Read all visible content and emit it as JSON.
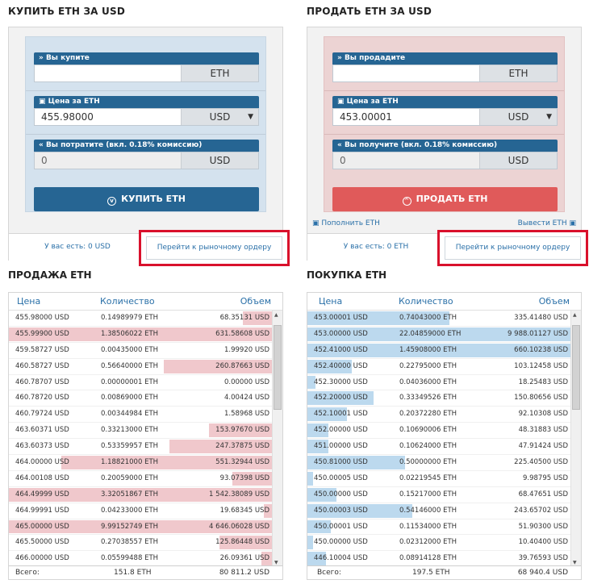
{
  "buy": {
    "title": "КУПИТЬ ETH ЗА USD",
    "amount_label": "» Вы купите",
    "amount_value": "",
    "amount_currency": "ETH",
    "price_label": "Цена за ETH",
    "price_value": "455.98000",
    "price_currency": "USD",
    "total_label": "« Вы потратите (вкл. 0.18% комиссию)",
    "total_value": "0",
    "total_currency": "USD",
    "button": "КУПИТЬ ETH",
    "balance": "У вас есть: 0 USD",
    "market_link": "Перейти к рыночному ордеру"
  },
  "sell": {
    "title": "ПРОДАТЬ ETH ЗА USD",
    "amount_label": "» Вы продадите",
    "amount_value": "",
    "amount_currency": "ETH",
    "price_label": "Цена за ETH",
    "price_value": "453.00001",
    "price_currency": "USD",
    "total_label": "« Вы получите (вкл. 0.18% комиссию)",
    "total_value": "0",
    "total_currency": "USD",
    "button": "ПРОДАТЬ ETH",
    "deposit": "Пополнить ETH",
    "withdraw": "Вывести ETH",
    "balance": "У вас есть: 0 ETH",
    "market_link": "Перейти к рыночному ордеру"
  },
  "colors": {
    "sell_bar": "#f0c8cc",
    "buy_bar": "#bcd9ee"
  },
  "asks": {
    "title": "ПРОДАЖА ETH",
    "headers": [
      "Цена",
      "Количество",
      "Объем"
    ],
    "rows": [
      {
        "price": "455.98000 USD",
        "qty": "0.14989979 ETH",
        "vol": "68.35131 USD",
        "rowfill": 0.0,
        "volfill": 0.11
      },
      {
        "price": "455.99900 USD",
        "qty": "1.38506022 ETH",
        "vol": "631.58608 USD",
        "rowfill": 1.0,
        "volfill": 0
      },
      {
        "price": "459.58727 USD",
        "qty": "0.00435000 ETH",
        "vol": "1.99920 USD",
        "rowfill": 0,
        "volfill": 0
      },
      {
        "price": "460.58727 USD",
        "qty": "0.56640000 ETH",
        "vol": "260.87663 USD",
        "rowfill": 0,
        "volfill": 0.41
      },
      {
        "price": "460.78707 USD",
        "qty": "0.00000001 ETH",
        "vol": "0.00000 USD",
        "rowfill": 0,
        "volfill": 0
      },
      {
        "price": "460.78720 USD",
        "qty": "0.00869000 ETH",
        "vol": "4.00424 USD",
        "rowfill": 0,
        "volfill": 0
      },
      {
        "price": "460.79724 USD",
        "qty": "0.00344984 ETH",
        "vol": "1.58968 USD",
        "rowfill": 0,
        "volfill": 0
      },
      {
        "price": "463.60371 USD",
        "qty": "0.33213000 ETH",
        "vol": "153.97670 USD",
        "rowfill": 0,
        "volfill": 0.24
      },
      {
        "price": "463.60373 USD",
        "qty": "0.53359957 ETH",
        "vol": "247.37875 USD",
        "rowfill": 0,
        "volfill": 0.39
      },
      {
        "price": "464.00000 USD",
        "qty": "1.18821000 ETH",
        "vol": "551.32944 USD",
        "rowfill": 0.8,
        "volfill": 0
      },
      {
        "price": "464.00108 USD",
        "qty": "0.20059000 ETH",
        "vol": "93.07398 USD",
        "rowfill": 0,
        "volfill": 0.15
      },
      {
        "price": "464.49999 USD",
        "qty": "3.32051867 ETH",
        "vol": "1 542.38089 USD",
        "rowfill": 1.0,
        "volfill": 0
      },
      {
        "price": "464.99991 USD",
        "qty": "0.04233000 ETH",
        "vol": "19.68345 USD",
        "rowfill": 0,
        "volfill": 0.03
      },
      {
        "price": "465.00000 USD",
        "qty": "9.99152749 ETH",
        "vol": "4 646.06028 USD",
        "rowfill": 1.0,
        "volfill": 0
      },
      {
        "price": "465.50000 USD",
        "qty": "0.27038557 ETH",
        "vol": "125.86448 USD",
        "rowfill": 0,
        "volfill": 0.2
      },
      {
        "price": "466.00000 USD",
        "qty": "0.05599488 ETH",
        "vol": "26.09361 USD",
        "rowfill": 0,
        "volfill": 0.04
      }
    ],
    "footer_label": "Всего:",
    "footer_qty": "151.8 ETH",
    "footer_vol": "80 811.2 USD"
  },
  "bids": {
    "title": "ПОКУПКА ETH",
    "headers": [
      "Цена",
      "Количество",
      "Объем"
    ],
    "rows": [
      {
        "price": "453.00001 USD",
        "qty": "0.74043000 ETH",
        "vol": "335.41480 USD",
        "fill": 0.54
      },
      {
        "price": "453.00000 USD",
        "qty": "22.04859000 ETH",
        "vol": "9 988.01127 USD",
        "fill": 1.0
      },
      {
        "price": "452.41000 USD",
        "qty": "1.45908000 ETH",
        "vol": "660.10238 USD",
        "fill": 1.0
      },
      {
        "price": "452.40000 USD",
        "qty": "0.22795000 ETH",
        "vol": "103.12458 USD",
        "fill": 0.17
      },
      {
        "price": "452.30000 USD",
        "qty": "0.04036000 ETH",
        "vol": "18.25483 USD",
        "fill": 0.03
      },
      {
        "price": "452.20000 USD",
        "qty": "0.33349526 ETH",
        "vol": "150.80656 USD",
        "fill": 0.25
      },
      {
        "price": "452.10001 USD",
        "qty": "0.20372280 ETH",
        "vol": "92.10308 USD",
        "fill": 0.15
      },
      {
        "price": "452.00000 USD",
        "qty": "0.10690006 ETH",
        "vol": "48.31883 USD",
        "fill": 0.08
      },
      {
        "price": "451.00000 USD",
        "qty": "0.10624000 ETH",
        "vol": "47.91424 USD",
        "fill": 0.08
      },
      {
        "price": "450.81000 USD",
        "qty": "0.50000000 ETH",
        "vol": "225.40500 USD",
        "fill": 0.37
      },
      {
        "price": "450.00005 USD",
        "qty": "0.02219545 ETH",
        "vol": "9.98795 USD",
        "fill": 0.02
      },
      {
        "price": "450.00000 USD",
        "qty": "0.15217000 ETH",
        "vol": "68.47651 USD",
        "fill": 0.11
      },
      {
        "price": "450.00003 USD",
        "qty": "0.54146000 ETH",
        "vol": "243.65702 USD",
        "fill": 0.4
      },
      {
        "price": "450.00001 USD",
        "qty": "0.11534000 ETH",
        "vol": "51.90300 USD",
        "fill": 0.09
      },
      {
        "price": "450.00000 USD",
        "qty": "0.02312000 ETH",
        "vol": "10.40400 USD",
        "fill": 0.02
      },
      {
        "price": "446.10004 USD",
        "qty": "0.08914128 ETH",
        "vol": "39.76593 USD",
        "fill": 0.07
      }
    ],
    "footer_label": "Всего:",
    "footer_qty": "197.5 ETH",
    "footer_vol": "68 940.4 USD"
  }
}
